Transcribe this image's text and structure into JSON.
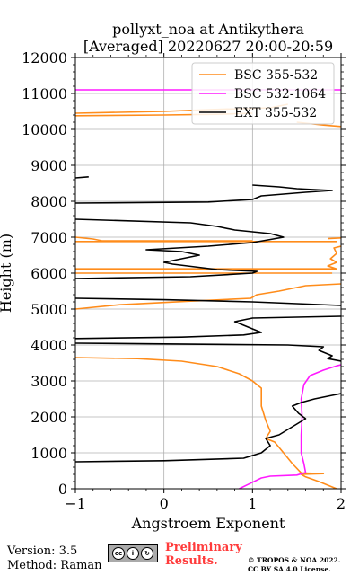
{
  "chart_data": {
    "type": "line",
    "title_line1": "pollyxt_noa at Antikythera",
    "title_line2": "[Averaged] 20220627 20:00-20:59",
    "xlabel": "Angstroem Exponent",
    "ylabel": "Height (m)",
    "xlim": [
      -1,
      2
    ],
    "ylim": [
      0,
      12000
    ],
    "xticks": [
      "−1",
      "0",
      "1",
      "2"
    ],
    "yticks": [
      "0",
      "1000",
      "2000",
      "3000",
      "4000",
      "5000",
      "6000",
      "7000",
      "8000",
      "9000",
      "10000",
      "11000",
      "12000"
    ],
    "grid": true,
    "legend_position": "top-right",
    "series": [
      {
        "name": "BSC 355-532",
        "color": "#ff8c1a",
        "points": [
          [
            1.95,
            0
          ],
          [
            1.9,
            50
          ],
          [
            1.75,
            200
          ],
          [
            1.6,
            330
          ],
          [
            1.55,
            400
          ],
          [
            1.8,
            420
          ],
          [
            1.55,
            440
          ],
          [
            1.45,
            700
          ],
          [
            1.35,
            1000
          ],
          [
            1.25,
            1300
          ],
          [
            1.15,
            1400
          ],
          [
            1.2,
            1600
          ],
          [
            1.15,
            1900
          ],
          [
            1.1,
            2300
          ],
          [
            1.1,
            2600
          ],
          [
            1.1,
            2800
          ],
          [
            1.0,
            3000
          ],
          [
            0.85,
            3200
          ],
          [
            0.6,
            3400
          ],
          [
            0.2,
            3550
          ],
          [
            -0.3,
            3620
          ],
          [
            -1.0,
            3650
          ],
          [
            null,
            null
          ],
          [
            -1.0,
            5000
          ],
          [
            -0.5,
            5120
          ],
          [
            0.3,
            5220
          ],
          [
            0.98,
            5300
          ],
          [
            1.05,
            5400
          ],
          [
            1.3,
            5500
          ],
          [
            1.6,
            5650
          ],
          [
            2.0,
            5700
          ],
          [
            null,
            null
          ],
          [
            -1.0,
            6000
          ],
          [
            1.9,
            6000
          ],
          [
            null,
            null
          ],
          [
            -1.0,
            6120
          ],
          [
            1.95,
            6120
          ],
          [
            1.85,
            6200
          ],
          [
            1.95,
            6300
          ],
          [
            1.88,
            6400
          ],
          [
            1.95,
            6550
          ],
          [
            1.92,
            6700
          ],
          [
            2.0,
            6750
          ],
          [
            null,
            null
          ],
          [
            -1.0,
            6880
          ],
          [
            1.95,
            6880
          ],
          [
            null,
            null
          ],
          [
            -1.0,
            7000
          ],
          [
            -0.8,
            6950
          ],
          [
            -0.7,
            6900
          ],
          [
            1.0,
            6900
          ],
          [
            null,
            null
          ],
          [
            1.85,
            6960
          ],
          [
            2.0,
            6980
          ],
          [
            null,
            null
          ],
          [
            -1.0,
            10380
          ],
          [
            0.0,
            10400
          ],
          [
            0.6,
            10420
          ],
          [
            1.0,
            10450
          ],
          [
            null,
            null
          ],
          [
            -1.0,
            10450
          ],
          [
            0.0,
            10500
          ],
          [
            0.5,
            10550
          ],
          [
            1.2,
            10600
          ],
          [
            1.4,
            10700
          ],
          [
            null,
            null
          ],
          [
            1.5,
            10200
          ],
          [
            1.8,
            10120
          ],
          [
            2.0,
            10080
          ]
        ]
      },
      {
        "name": "BSC 532-1064",
        "color": "#ff19ff",
        "points": [
          [
            0.85,
            0
          ],
          [
            0.95,
            120
          ],
          [
            1.1,
            300
          ],
          [
            1.2,
            350
          ],
          [
            1.5,
            380
          ],
          [
            1.6,
            450
          ],
          [
            1.58,
            700
          ],
          [
            1.55,
            1000
          ],
          [
            1.55,
            1500
          ],
          [
            1.56,
            2000
          ],
          [
            1.55,
            2500
          ],
          [
            1.58,
            2900
          ],
          [
            1.65,
            3150
          ],
          [
            1.8,
            3300
          ],
          [
            1.95,
            3420
          ],
          [
            2.0,
            3450
          ],
          [
            null,
            null
          ],
          [
            -1.0,
            11100
          ],
          [
            2.0,
            11100
          ]
        ]
      },
      {
        "name": "EXT 355-532",
        "color": "#000000",
        "points": [
          [
            -1.0,
            750
          ],
          [
            0.0,
            780
          ],
          [
            0.9,
            850
          ],
          [
            1.1,
            1000
          ],
          [
            1.2,
            1200
          ],
          [
            1.15,
            1400
          ],
          [
            1.3,
            1500
          ],
          [
            1.5,
            1800
          ],
          [
            1.6,
            1950
          ],
          [
            1.52,
            2100
          ],
          [
            1.45,
            2300
          ],
          [
            1.55,
            2400
          ],
          [
            1.7,
            2500
          ],
          [
            1.9,
            2600
          ],
          [
            2.0,
            2650
          ],
          [
            null,
            null
          ],
          [
            2.0,
            3550
          ],
          [
            1.85,
            3620
          ],
          [
            1.9,
            3700
          ],
          [
            1.75,
            3850
          ],
          [
            1.8,
            3950
          ],
          [
            1.4,
            4000
          ],
          [
            0.0,
            4030
          ],
          [
            -1.0,
            4050
          ],
          [
            null,
            null
          ],
          [
            -1.0,
            4180
          ],
          [
            0.2,
            4220
          ],
          [
            0.9,
            4280
          ],
          [
            1.1,
            4350
          ],
          [
            1.0,
            4450
          ],
          [
            0.9,
            4550
          ],
          [
            0.8,
            4650
          ],
          [
            1.0,
            4750
          ],
          [
            2.0,
            4800
          ],
          [
            null,
            null
          ],
          [
            2.0,
            5100
          ],
          [
            1.0,
            5200
          ],
          [
            0.0,
            5260
          ],
          [
            -1.0,
            5300
          ],
          [
            null,
            null
          ],
          [
            -1.0,
            5850
          ],
          [
            0.3,
            5900
          ],
          [
            1.0,
            6000
          ],
          [
            1.05,
            6050
          ],
          [
            0.6,
            6100
          ],
          [
            0.1,
            6250
          ],
          [
            0.0,
            6300
          ],
          [
            0.2,
            6400
          ],
          [
            0.4,
            6500
          ],
          [
            0.2,
            6600
          ],
          [
            -0.2,
            6650
          ],
          [
            0.5,
            6750
          ],
          [
            1.0,
            6850
          ],
          [
            1.35,
            7000
          ],
          [
            1.2,
            7100
          ],
          [
            0.8,
            7200
          ],
          [
            0.6,
            7300
          ],
          [
            0.3,
            7400
          ],
          [
            -1.0,
            7500
          ],
          [
            null,
            null
          ],
          [
            -1.0,
            7950
          ],
          [
            0.5,
            7980
          ],
          [
            1.0,
            8050
          ],
          [
            1.1,
            8150
          ],
          [
            1.6,
            8250
          ],
          [
            1.9,
            8300
          ],
          [
            1.5,
            8350
          ],
          [
            1.3,
            8400
          ],
          [
            1.0,
            8450
          ],
          [
            null,
            null
          ],
          [
            -1.0,
            8650
          ],
          [
            -0.85,
            8680
          ]
        ]
      }
    ]
  },
  "footer": {
    "version": "Version: 3.5",
    "method": "Method: Raman",
    "preliminary_line1": "Preliminary",
    "preliminary_line2": "Results.",
    "copyright_line1": "© TROPOS & NOA 2022.",
    "copyright_line2": "CC BY SA 4.0 License."
  }
}
